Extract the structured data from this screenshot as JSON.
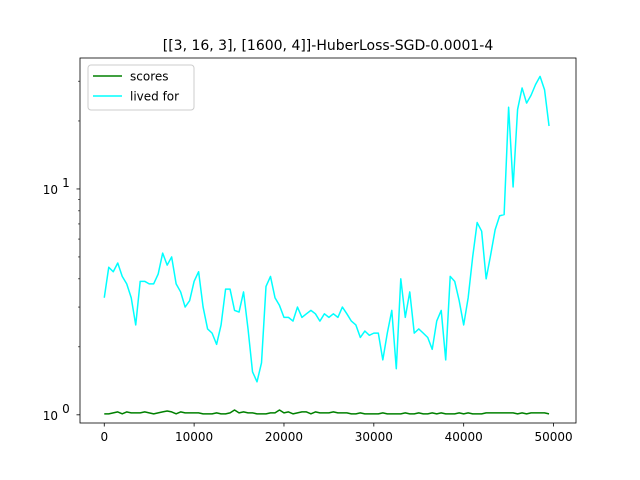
{
  "chart_data": {
    "type": "line",
    "title": "[[3, 16, 3], [1600, 4]]-HuberLoss-SGD-0.0001-4",
    "xlabel": "",
    "ylabel": "",
    "xlim": [
      -2700,
      52500
    ],
    "ylim": [
      0.92,
      38
    ],
    "yscale": "log",
    "grid": false,
    "legend_position": "top-left",
    "x_ticks": [
      0,
      10000,
      20000,
      30000,
      40000,
      50000
    ],
    "x_tick_labels": [
      "0",
      "10000",
      "20000",
      "30000",
      "40000",
      "50000"
    ],
    "y_ticks": [
      1,
      10
    ],
    "y_tick_labels": [
      "10^0",
      "10^1"
    ],
    "x": [
      0,
      500,
      1000,
      1500,
      2000,
      2500,
      3000,
      3500,
      4000,
      4500,
      5000,
      5500,
      6000,
      6500,
      7000,
      7500,
      8000,
      8500,
      9000,
      9500,
      10000,
      10500,
      11000,
      11500,
      12000,
      12500,
      13000,
      13500,
      14000,
      14500,
      15000,
      15500,
      16000,
      16500,
      17000,
      17500,
      18000,
      18500,
      19000,
      19500,
      20000,
      20500,
      21000,
      21500,
      22000,
      22500,
      23000,
      23500,
      24000,
      24500,
      25000,
      25500,
      26000,
      26500,
      27000,
      27500,
      28000,
      28500,
      29000,
      29500,
      30000,
      30500,
      31000,
      31500,
      32000,
      32500,
      33000,
      33500,
      34000,
      34500,
      35000,
      35500,
      36000,
      36500,
      37000,
      37500,
      38000,
      38500,
      39000,
      39500,
      40000,
      40500,
      41000,
      41500,
      42000,
      42500,
      43000,
      43500,
      44000,
      44500,
      45000,
      45500,
      46000,
      46500,
      47000,
      47500,
      48000,
      48500,
      49000,
      49500
    ],
    "series": [
      {
        "name": "scores",
        "color": "#008000",
        "values": [
          1.01,
          1.01,
          1.02,
          1.03,
          1.01,
          1.03,
          1.02,
          1.02,
          1.02,
          1.03,
          1.02,
          1.01,
          1.02,
          1.03,
          1.04,
          1.03,
          1.01,
          1.03,
          1.02,
          1.02,
          1.02,
          1.02,
          1.01,
          1.01,
          1.01,
          1.02,
          1.01,
          1.01,
          1.02,
          1.05,
          1.02,
          1.03,
          1.02,
          1.02,
          1.01,
          1.01,
          1.01,
          1.02,
          1.02,
          1.05,
          1.02,
          1.03,
          1.01,
          1.02,
          1.03,
          1.03,
          1.01,
          1.03,
          1.02,
          1.02,
          1.02,
          1.03,
          1.02,
          1.02,
          1.02,
          1.01,
          1.01,
          1.02,
          1.01,
          1.01,
          1.01,
          1.01,
          1.02,
          1.01,
          1.01,
          1.01,
          1.01,
          1.02,
          1.01,
          1.01,
          1.02,
          1.01,
          1.01,
          1.02,
          1.01,
          1.02,
          1.01,
          1.01,
          1.01,
          1.02,
          1.01,
          1.02,
          1.01,
          1.01,
          1.01,
          1.02,
          1.02,
          1.02,
          1.02,
          1.02,
          1.02,
          1.02,
          1.01,
          1.02,
          1.01,
          1.02,
          1.02,
          1.02,
          1.02,
          1.01
        ]
      },
      {
        "name": "lived for",
        "color": "#00ffff",
        "values": [
          3.3,
          4.5,
          4.3,
          4.7,
          4.1,
          3.8,
          3.3,
          2.5,
          3.9,
          3.9,
          3.8,
          3.8,
          4.2,
          5.2,
          4.6,
          5.0,
          3.8,
          3.5,
          3.0,
          3.2,
          3.9,
          4.3,
          3.0,
          2.4,
          2.3,
          2.05,
          2.5,
          3.6,
          3.6,
          2.9,
          2.85,
          3.5,
          2.4,
          1.55,
          1.4,
          1.7,
          3.7,
          4.1,
          3.3,
          3.05,
          2.7,
          2.7,
          2.6,
          3.0,
          2.7,
          2.8,
          2.9,
          2.8,
          2.6,
          2.8,
          2.7,
          2.8,
          2.7,
          3.0,
          2.8,
          2.6,
          2.5,
          2.2,
          2.35,
          2.25,
          2.3,
          2.3,
          1.75,
          2.3,
          2.9,
          1.6,
          4.0,
          2.7,
          3.5,
          2.3,
          2.4,
          2.3,
          2.2,
          1.95,
          2.6,
          2.9,
          1.75,
          4.1,
          3.9,
          3.2,
          2.5,
          3.3,
          5.0,
          7.1,
          6.5,
          4.0,
          5.1,
          6.6,
          7.6,
          7.7,
          23.0,
          10.2,
          22.5,
          28.0,
          24.0,
          26.0,
          29.0,
          31.5,
          27.5,
          19.0
        ]
      }
    ]
  }
}
